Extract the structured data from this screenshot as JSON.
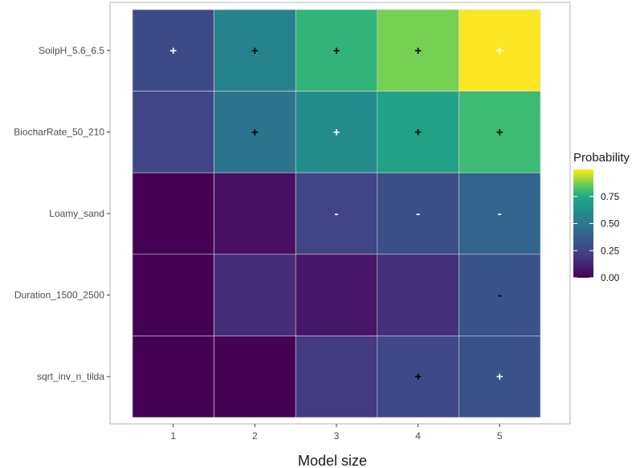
{
  "chart_data": {
    "type": "heatmap",
    "xlabel": "Model size",
    "x_categories": [
      "1",
      "2",
      "3",
      "4",
      "5"
    ],
    "y_categories": [
      "SoilpH_5.6_6.5",
      "BiocharRate_50_210",
      "Loamy_sand",
      "Duration_1500_2500",
      "sqrt_inv_n_tilda"
    ],
    "legend": {
      "title": "Probability",
      "range": [
        0,
        1
      ],
      "ticks": [
        0.0,
        0.25,
        0.5,
        0.75
      ],
      "tick_labels": [
        "0.00",
        "0.25",
        "0.50",
        "0.75"
      ],
      "colormap": "viridis",
      "placement": "right"
    },
    "values": [
      [
        0.28,
        0.55,
        0.78,
        0.87,
        1.0
      ],
      [
        0.26,
        0.48,
        0.6,
        0.72,
        0.8
      ],
      [
        0.0,
        0.05,
        0.25,
        0.3,
        0.4
      ],
      [
        0.0,
        0.16,
        0.08,
        0.17,
        0.32
      ],
      [
        0.0,
        0.0,
        0.21,
        0.27,
        0.31
      ]
    ],
    "signs": [
      [
        "+",
        "+",
        "+",
        "+",
        "+"
      ],
      [
        "",
        "+",
        "+",
        "+",
        "+"
      ],
      [
        "",
        "",
        "-",
        "-",
        "-"
      ],
      [
        "",
        "",
        "",
        "",
        "-"
      ],
      [
        "",
        "",
        "",
        "+",
        "+"
      ]
    ],
    "grid": true
  }
}
